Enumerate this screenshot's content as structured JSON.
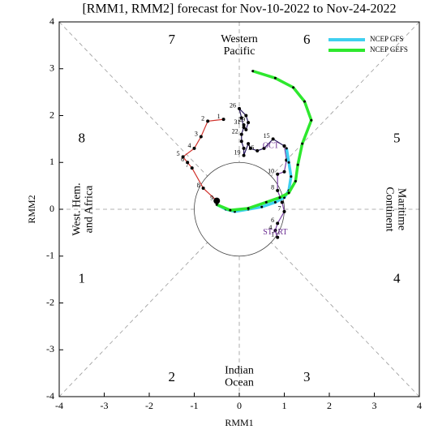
{
  "chart_data": {
    "type": "line",
    "title": "[RMM1, RMM2] forecast for Nov-10-2022 to Nov-24-2022",
    "xlabel": "RMM1",
    "ylabel": "RMM2",
    "xlim": [
      -4,
      4
    ],
    "ylim": [
      -4,
      4
    ],
    "xticks": [
      -4,
      -3,
      -2,
      -1,
      0,
      1,
      2,
      3,
      4
    ],
    "yticks": [
      -4,
      -3,
      -2,
      -1,
      0,
      1,
      2,
      3,
      4
    ],
    "phases": [
      "1",
      "2",
      "3",
      "4",
      "5",
      "6",
      "7",
      "8"
    ],
    "regions": [
      [
        "Western",
        "Pacific"
      ],
      [
        "Indian",
        "Ocean"
      ],
      [
        "West. Hem.",
        "and Africa"
      ],
      [
        "Maritime",
        "Continent"
      ]
    ],
    "annotations": [
      "START",
      "OCT"
    ],
    "series": [
      {
        "color": "#7b3fa6",
        "x": [
          0.85,
          0.8,
          0.85,
          1.0,
          0.95,
          0.85,
          0.85,
          1.0,
          1.05,
          1.0
        ],
        "y": [
          -0.6,
          -0.45,
          -0.3,
          -0.05,
          0.15,
          0.4,
          0.75,
          0.8,
          1.05,
          1.35
        ],
        "labels": [
          1,
          4,
          6,
          7,
          null,
          8,
          10,
          null,
          null,
          null
        ]
      },
      {
        "color": "#2a1a5e",
        "x": [
          1.0,
          0.75,
          0.55,
          0.4,
          0.25,
          0.2,
          0.1,
          0.1,
          0.05,
          0.05,
          0.1,
          0.05,
          0.0,
          0.15,
          0.2,
          0.15,
          0.1
        ],
        "y": [
          1.35,
          1.5,
          1.3,
          1.25,
          1.3,
          1.4,
          1.15,
          1.3,
          1.45,
          1.6,
          1.75,
          1.95,
          2.15,
          2.0,
          1.85,
          1.7,
          1.8
        ],
        "labels": [
          null,
          15,
          null,
          16,
          null,
          null,
          19,
          null,
          null,
          22,
          null,
          null,
          26,
          null,
          29,
          null,
          31
        ]
      },
      {
        "color": "#d0302a",
        "x": [
          -0.35,
          -0.7,
          -0.85,
          -1.0,
          -1.25,
          -1.15,
          -1.05,
          -0.8,
          -0.5
        ],
        "y": [
          1.92,
          1.88,
          1.55,
          1.3,
          1.12,
          1.0,
          0.88,
          0.45,
          0.18
        ],
        "labels": [
          1,
          2,
          3,
          4,
          5,
          6,
          7,
          8,
          9
        ]
      },
      {
        "name": "NCEP GFS",
        "color": "#3fd0f0",
        "x": [
          -0.5,
          -0.3,
          -0.1,
          0.2,
          0.5,
          0.8,
          1.0,
          1.1,
          1.15,
          1.1,
          1.05
        ],
        "y": [
          0.1,
          0.0,
          -0.05,
          0.0,
          0.05,
          0.15,
          0.25,
          0.4,
          0.7,
          1.0,
          1.3
        ]
      },
      {
        "name": "NCEP GEFS",
        "color": "#2ee82e",
        "x": [
          -0.5,
          -0.2,
          0.2,
          0.6,
          0.9,
          1.1,
          1.25,
          1.3,
          1.4,
          1.6,
          1.45,
          1.2,
          0.8,
          0.3
        ],
        "y": [
          0.1,
          -0.02,
          0.02,
          0.15,
          0.25,
          0.35,
          0.6,
          0.95,
          1.4,
          1.9,
          2.3,
          2.6,
          2.8,
          2.95
        ]
      }
    ]
  }
}
